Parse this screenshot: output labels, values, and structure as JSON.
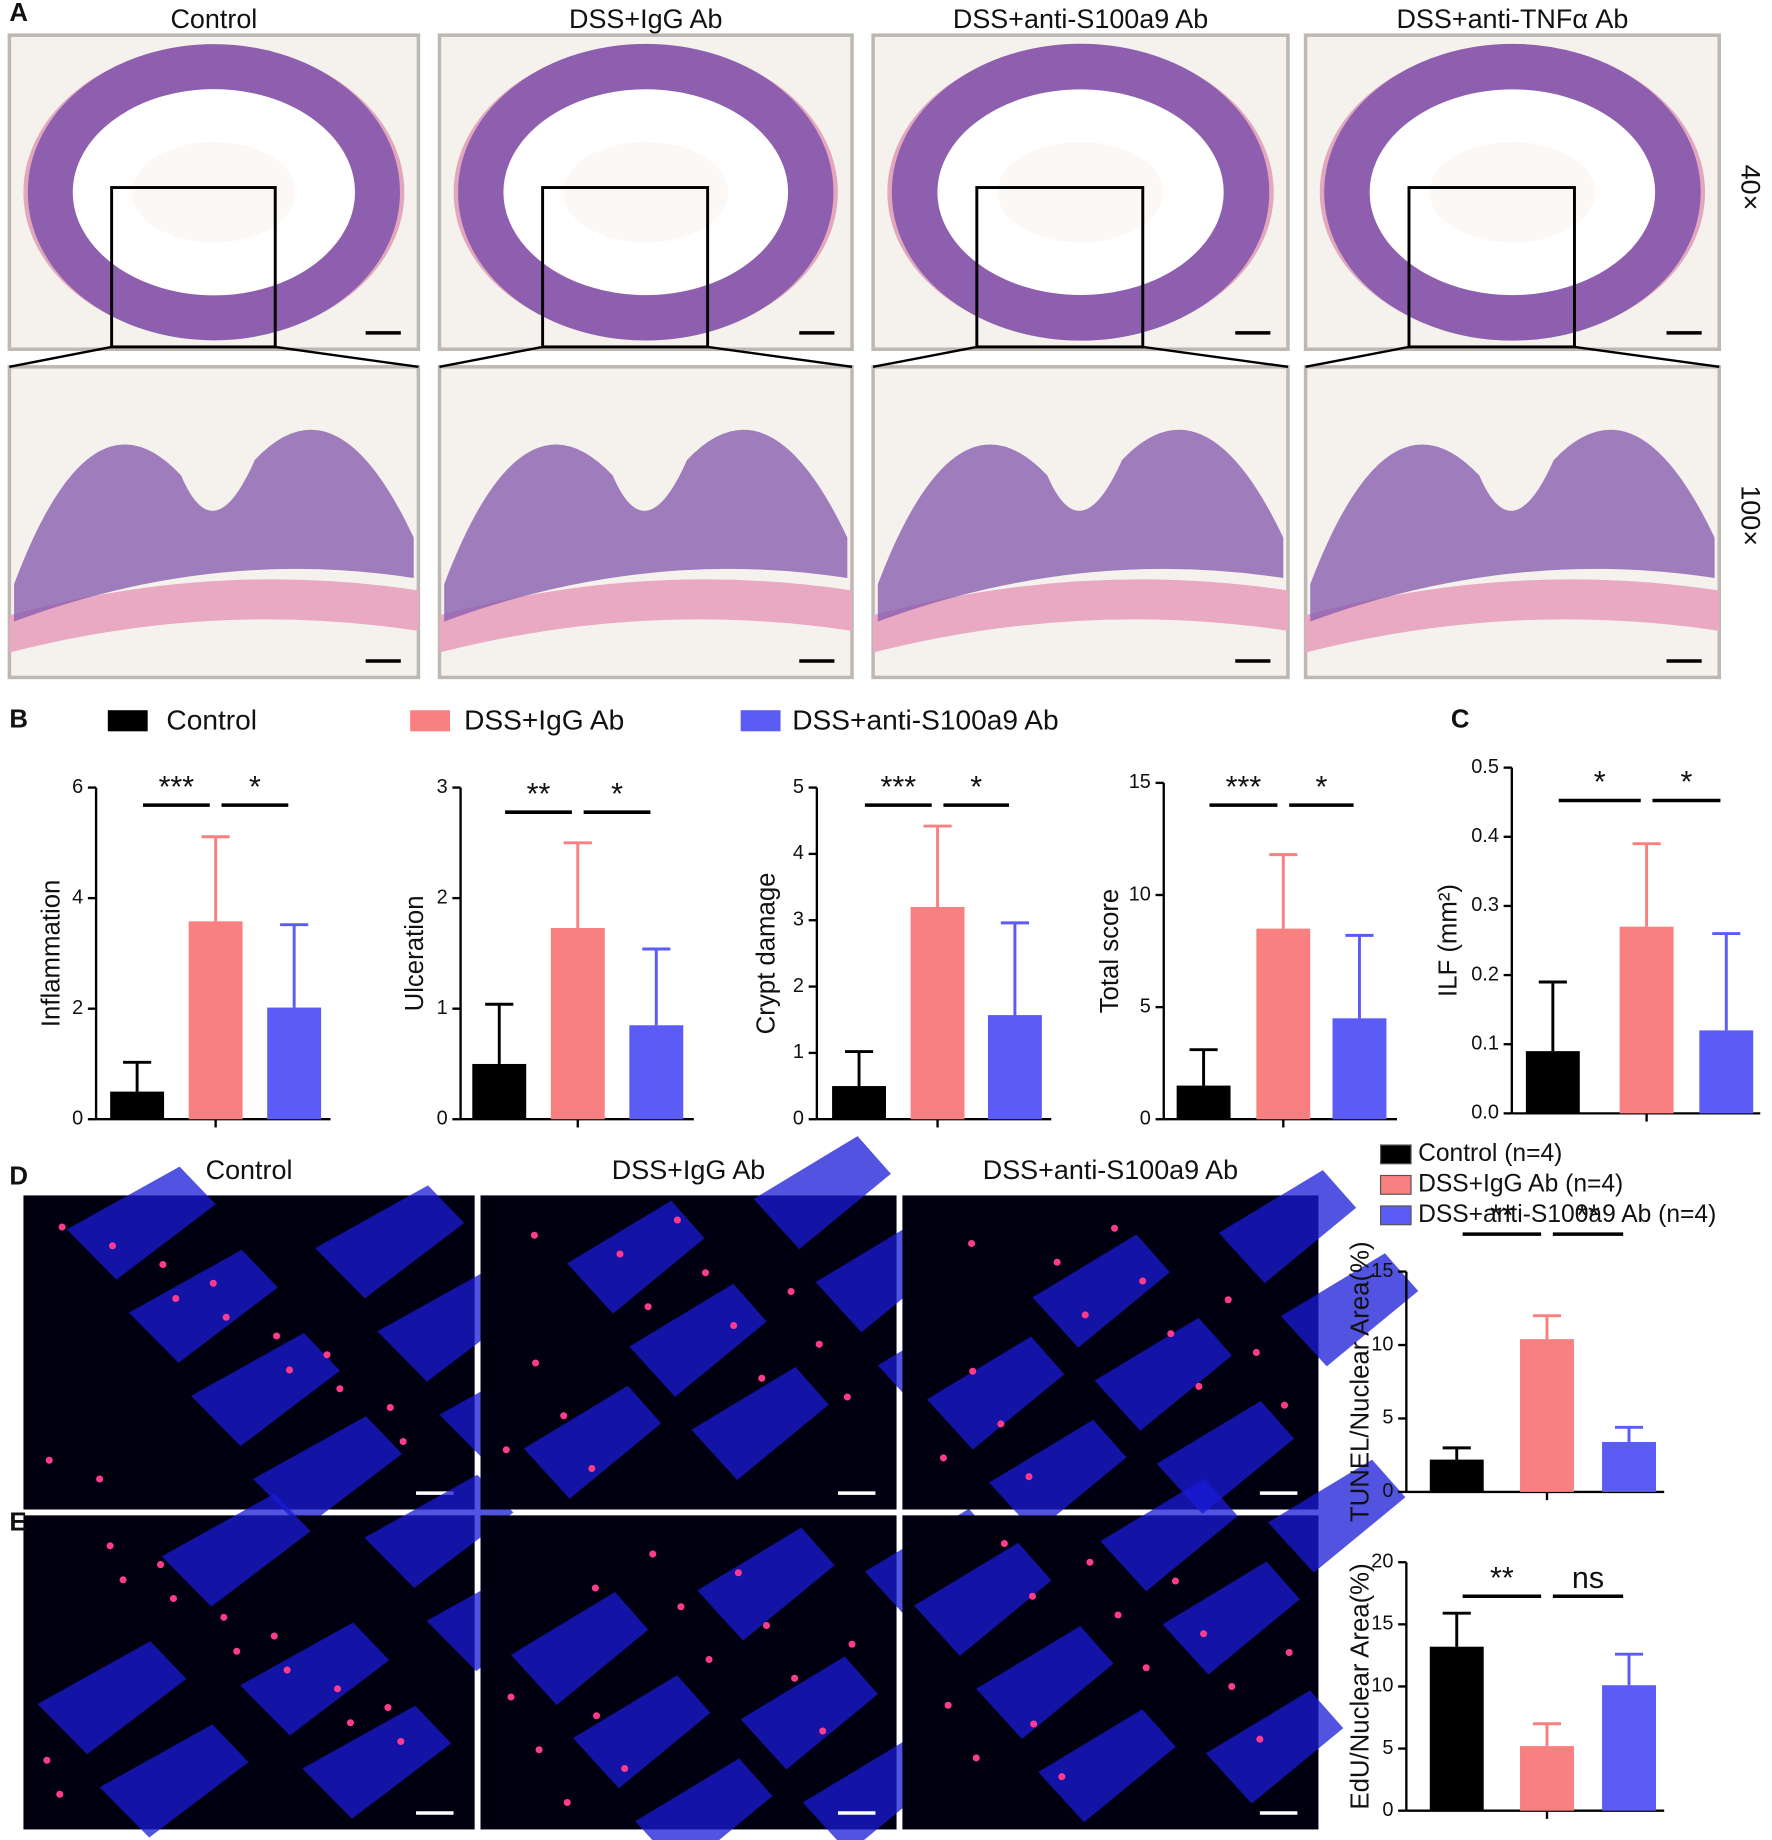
{
  "figure": {
    "panel_labels": [
      "A",
      "B",
      "C",
      "D",
      "E"
    ],
    "a_titles": [
      "Control",
      "DSS+IgG Ab",
      "DSS+anti-S100a9 Ab",
      "DSS+anti-TNFα Ab"
    ],
    "magnifications": [
      "40×",
      "100×"
    ],
    "legend_b": [
      {
        "name": "Control",
        "color": "#000000"
      },
      {
        "name": "DSS+IgG Ab",
        "color": "#f98080"
      },
      {
        "name": "DSS+anti-S100a9 Ab",
        "color": "#5b5bf5"
      }
    ],
    "d_titles": [
      "Control",
      "DSS+IgG Ab",
      "DSS+anti-S100a9 Ab"
    ],
    "legend_d": [
      {
        "name": "Control (n=4)",
        "color": "#000000"
      },
      {
        "name": "DSS+IgG Ab (n=4)",
        "color": "#f98080"
      },
      {
        "name": "DSS+anti-S100a9 Ab (n=4)",
        "color": "#5b5bf5"
      }
    ]
  },
  "chart_data": [
    {
      "type": "bar",
      "ylabel": "Inflammation",
      "values": [
        0.5,
        3.58,
        2.02
      ],
      "errors": [
        0.53,
        1.53,
        1.5
      ],
      "colors": [
        "#000000",
        "#f98080",
        "#5b5bf5"
      ],
      "ylim": [
        0,
        6
      ],
      "yticks": [
        0,
        2,
        4,
        6
      ],
      "significance": [
        "***",
        "*"
      ]
    },
    {
      "type": "bar",
      "ylabel": "Ulceration",
      "values": [
        0.5,
        1.73,
        0.85
      ],
      "errors": [
        0.54,
        0.77,
        0.69
      ],
      "colors": [
        "#000000",
        "#f98080",
        "#5b5bf5"
      ],
      "ylim": [
        0,
        3
      ],
      "yticks": [
        0,
        1,
        2,
        3
      ],
      "significance": [
        "**",
        "*"
      ]
    },
    {
      "type": "bar",
      "ylabel": "Crypt damage",
      "values": [
        0.5,
        3.2,
        1.57
      ],
      "errors": [
        0.52,
        1.22,
        1.39
      ],
      "colors": [
        "#000000",
        "#f98080",
        "#5b5bf5"
      ],
      "ylim": [
        0,
        5
      ],
      "yticks": [
        0,
        1,
        2,
        3,
        4,
        5
      ],
      "significance": [
        "***",
        "*"
      ]
    },
    {
      "type": "bar",
      "ylabel": "Total score",
      "values": [
        1.5,
        8.5,
        4.5
      ],
      "errors": [
        1.6,
        3.3,
        3.7
      ],
      "colors": [
        "#000000",
        "#f98080",
        "#5b5bf5"
      ],
      "ylim": [
        0,
        15
      ],
      "yticks": [
        0,
        5,
        10,
        15
      ],
      "significance": [
        "***",
        "*"
      ]
    },
    {
      "type": "bar",
      "ylabel": "ILF (mm²)",
      "values": [
        0.09,
        0.27,
        0.12
      ],
      "errors": [
        0.1,
        0.12,
        0.14
      ],
      "colors": [
        "#000000",
        "#f98080",
        "#5b5bf5"
      ],
      "ylim": [
        0,
        0.5
      ],
      "yticks": [
        {
          "value": 0,
          "label": "0.0"
        },
        0.1,
        0.2,
        0.3,
        0.4,
        0.5
      ],
      "significance": [
        "*",
        "*"
      ]
    },
    {
      "type": "bar",
      "ylabel": "TUNEL/Nuclear Area(%)",
      "values": [
        2.2,
        10.4,
        3.4
      ],
      "errors": [
        0.8,
        1.6,
        1.0
      ],
      "colors": [
        "#000000",
        "#f98080",
        "#5b5bf5"
      ],
      "ylim": [
        0,
        15
      ],
      "yticks": [
        0,
        5,
        10,
        15
      ],
      "significance": [
        "**",
        "**"
      ]
    },
    {
      "type": "bar",
      "ylabel": "EdU/Nuclear Area(%)",
      "values": [
        13.2,
        5.2,
        10.1
      ],
      "errors": [
        2.7,
        1.8,
        2.5
      ],
      "colors": [
        "#000000",
        "#f98080",
        "#5b5bf5"
      ],
      "ylim": [
        0,
        20
      ],
      "yticks": [
        0,
        5,
        10,
        15,
        20
      ],
      "significance": [
        "**",
        "ns"
      ]
    }
  ]
}
